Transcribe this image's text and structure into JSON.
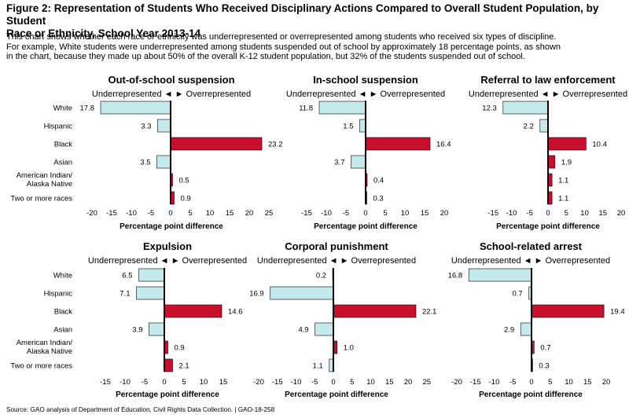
{
  "figure": {
    "title_lines": [
      "Figure 2: Representation of Students Who Received Disciplinary Actions Compared to Overall Student Population, by Student",
      "Race or Ethnicity, School Year 2013-14"
    ],
    "description_lines": [
      "This chart shows whether each race or ethnicity was underrepresented or overrepresented among students who received six types of discipline.",
      "For example, White students were underrepresented among students suspended out of school by approximately 18 percentage points, as shown",
      "in the chart, because they made up about 50% of the overall K-12 student population, but 32% of the students suspended out of school."
    ],
    "source": "Source: GAO analysis of Department of Education, Civil Rights Data Collection.  |  GAO-18-258",
    "category_labels": [
      [
        "White"
      ],
      [
        "Hispanic"
      ],
      [
        "Black"
      ],
      [
        "Asian"
      ],
      [
        "American Indian/",
        "Alaska Native"
      ],
      [
        "Two or more races"
      ]
    ],
    "direction_label": "Underrepresented ◄ ► Overrepresented",
    "colors": {
      "negative": "#c5eaec",
      "positive": "#c8102e",
      "stroke": "#000000"
    }
  },
  "chart_data": [
    {
      "type": "bar",
      "title": "Out-of-school suspension",
      "categories": [
        "White",
        "Hispanic",
        "Black",
        "Asian",
        "American Indian/Alaska Native",
        "Two or more races"
      ],
      "values": [
        -17.8,
        -3.3,
        23.2,
        -3.5,
        0.5,
        0.9
      ],
      "value_labels": [
        "17.8",
        "3.3",
        "23.2",
        "3.5",
        "0.5",
        "0.9"
      ],
      "xlim": [
        -20,
        25
      ],
      "ticks": [
        -20,
        -15,
        -10,
        -5,
        0,
        5,
        10,
        15,
        20,
        25
      ],
      "tick_labels": [
        "-20",
        "-15",
        "-10",
        "-5",
        "0",
        "5",
        "10",
        "15",
        "20",
        "25"
      ],
      "xlabel": "Percentage point difference"
    },
    {
      "type": "bar",
      "title": "In-school suspension",
      "categories": [
        "White",
        "Hispanic",
        "Black",
        "Asian",
        "American Indian/Alaska Native",
        "Two or more races"
      ],
      "values": [
        -11.8,
        -1.5,
        16.4,
        -3.7,
        0.4,
        0.3
      ],
      "value_labels": [
        "11.8",
        "1.5",
        "16.4",
        "3.7",
        "0.4",
        "0.3"
      ],
      "xlim": [
        -15,
        20
      ],
      "ticks": [
        -15,
        -10,
        -5,
        0,
        5,
        10,
        15,
        20
      ],
      "tick_labels": [
        "-15",
        "-10",
        "-5",
        "0",
        "5",
        "10",
        "15",
        "20"
      ],
      "xlabel": "Percentage point difference"
    },
    {
      "type": "bar",
      "title": "Referral to law enforcement",
      "categories": [
        "White",
        "Hispanic",
        "Black",
        "Asian",
        "American Indian/Alaska Native",
        "Two or more races"
      ],
      "values": [
        -12.3,
        -2.2,
        10.4,
        1.9,
        1.1,
        1.1
      ],
      "value_labels": [
        "12.3",
        "2.2",
        "10.4",
        "1.9",
        "1.1",
        "1.1"
      ],
      "xlim": [
        -15,
        20
      ],
      "ticks": [
        -15,
        -10,
        -5,
        0,
        5,
        10,
        15,
        20
      ],
      "tick_labels": [
        "-15",
        "-10",
        "-5",
        "0",
        "5",
        "10",
        "15",
        "20"
      ],
      "xlabel": "Percentage point difference"
    },
    {
      "type": "bar",
      "title": "Expulsion",
      "categories": [
        "White",
        "Hispanic",
        "Black",
        "Asian",
        "American Indian/Alaska Native",
        "Two or more races"
      ],
      "values": [
        -6.5,
        -7.1,
        14.6,
        -3.9,
        0.9,
        2.1
      ],
      "value_labels": [
        "6.5",
        "7.1",
        "14.6",
        "3.9",
        "0.9",
        "2.1"
      ],
      "xlim": [
        -15,
        15
      ],
      "ticks": [
        -15,
        -10,
        -5,
        0,
        5,
        10,
        15
      ],
      "tick_labels": [
        "-15",
        "-10",
        "-5",
        "0",
        "5",
        "10",
        "15"
      ],
      "xlabel": "Percentage point difference"
    },
    {
      "type": "bar",
      "title": "Corporal punishment",
      "categories": [
        "White",
        "Hispanic",
        "Black",
        "Asian",
        "American Indian/Alaska Native",
        "Two or more races"
      ],
      "values": [
        -0.2,
        -16.9,
        22.1,
        -4.9,
        1.0,
        -1.1
      ],
      "value_labels": [
        "0.2",
        "16.9",
        "22.1",
        "4.9",
        "1.0",
        "1.1"
      ],
      "xlim": [
        -20,
        25
      ],
      "ticks": [
        -20,
        -15,
        -10,
        -5,
        0,
        5,
        10,
        15,
        20,
        25
      ],
      "tick_labels": [
        "-20",
        "-15",
        "-10",
        "-5",
        "0",
        "5",
        "10",
        "15",
        "20",
        "25"
      ],
      "xlabel": "Percentage point difference"
    },
    {
      "type": "bar",
      "title": "School-related arrest",
      "categories": [
        "White",
        "Hispanic",
        "Black",
        "Asian",
        "American Indian/Alaska Native",
        "Two or more races"
      ],
      "values": [
        -16.8,
        -0.7,
        19.4,
        -2.9,
        0.7,
        0.3
      ],
      "value_labels": [
        "16.8",
        "0.7",
        "19.4",
        "2.9",
        "0.7",
        "0.3"
      ],
      "xlim": [
        -20,
        20
      ],
      "ticks": [
        -20,
        -15,
        -10,
        -5,
        0,
        5,
        10,
        15,
        20
      ],
      "tick_labels": [
        "-20",
        "-15",
        "-10",
        "-5",
        "0",
        "5",
        "10",
        "15",
        "20"
      ],
      "xlabel": "Percentage point difference"
    }
  ]
}
